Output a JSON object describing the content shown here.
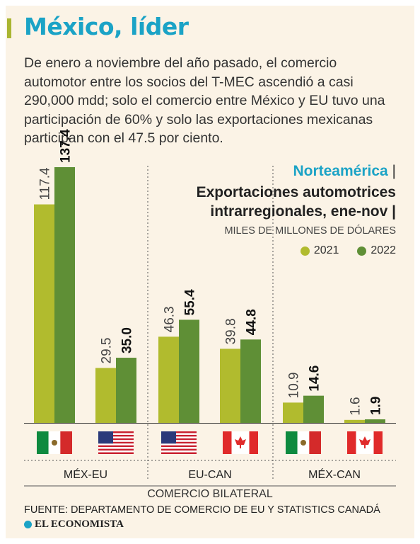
{
  "header": {
    "title": "México, líder",
    "intro": "De enero a noviembre del año pasado, el comercio automotor entre los socios del T-MEC ascendió a casi 290,000 mdd; solo el comercio entre México y EU tuvo una participación de 60% y solo las exportaciones mexicanas participan con el 47.5 por ciento.",
    "region": "Norteamérica",
    "separator": "|",
    "chart_title_line1": "Exportaciones automotrices",
    "chart_title_line2": "intrarregionales, ene-nov |",
    "unit": "MILES DE MILLONES DE DÓLARES"
  },
  "footer": {
    "source": "FUENTE: DEPARTAMENTO DE COMERCIO DE EU Y STATISTICS CANADÁ",
    "brand": "EL ECONOMISTA"
  },
  "colors": {
    "y2021": "#b1bb2e",
    "y2022": "#5f8f36",
    "accent": "#1ba3c6"
  },
  "chart_data": {
    "type": "bar",
    "categories": [
      "MÉX-EU",
      "MÉX-EU",
      "EU-CAN",
      "EU-CAN",
      "MÉX-CAN",
      "MÉX-CAN"
    ],
    "exporters": [
      "mexico-flag",
      "us-flag",
      "us-flag",
      "canada-flag",
      "mexico-flag",
      "canada-flag"
    ],
    "series": [
      {
        "name": "2021",
        "values": [
          117.4,
          29.5,
          46.3,
          39.8,
          10.9,
          1.6
        ]
      },
      {
        "name": "2022",
        "values": [
          137.4,
          35.0,
          55.4,
          44.8,
          14.6,
          1.9
        ]
      }
    ],
    "labels_2021": [
      "117.4",
      "29.5",
      "46.3",
      "39.8",
      "10.9",
      "1.6"
    ],
    "labels_2022": [
      "137.4",
      "35.0",
      "55.4",
      "44.8",
      "14.6",
      "1.9"
    ],
    "group_labels": [
      "MÉX-EU",
      "EU-CAN",
      "MÉX-CAN"
    ],
    "xlabel": "COMERCIO BILATERAL",
    "ylabel": "MILES DE MILLONES DE DÓLARES",
    "ylim": [
      0,
      137.4
    ],
    "legend_position": "top-right",
    "grid": false
  }
}
